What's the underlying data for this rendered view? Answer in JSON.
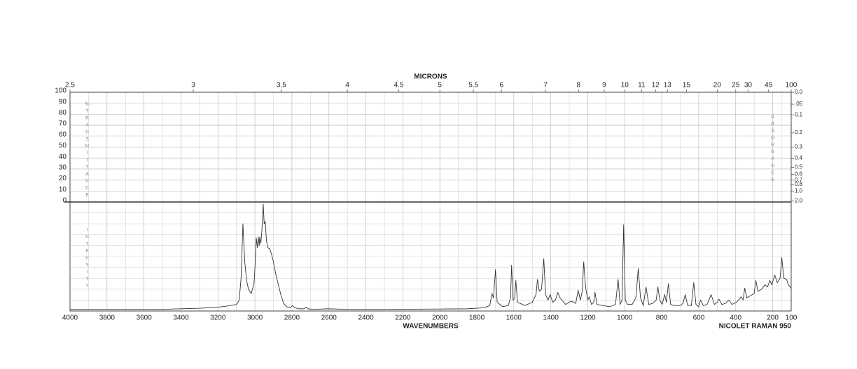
{
  "chart_data": {
    "type": "line",
    "x_label": "WAVENUMBERS",
    "x2_label": "MICRONS",
    "y_label": "%TRANSMITTANCE",
    "y2_label": "ABSORBANCE",
    "intensity_label": "INTENSITY",
    "instrument": "NICOLET RAMAN 950",
    "xlim": [
      4000,
      100
    ],
    "xticks": [
      4000,
      3800,
      3600,
      3400,
      3200,
      3000,
      2800,
      2600,
      2400,
      2200,
      2000,
      1800,
      1600,
      1400,
      1200,
      1000,
      800,
      600,
      400,
      200,
      100
    ],
    "x2ticks": [
      2.5,
      3,
      3.5,
      4,
      4.5,
      5,
      5.5,
      6,
      7,
      8,
      9,
      10,
      11,
      12,
      13,
      15,
      20,
      25,
      30,
      45,
      100
    ],
    "ylim": [
      0,
      100
    ],
    "yticks": [
      0,
      10,
      20,
      30,
      40,
      50,
      60,
      70,
      80,
      90,
      100
    ],
    "y2ticks": [
      {
        "value": 0,
        "label": "0.0"
      },
      {
        "value": 0.05,
        "label": ".05"
      },
      0.1,
      0.2,
      0.3,
      0.4,
      0.5,
      0.6,
      0.7,
      0.8,
      {
        "value": 1,
        "label": "1.0"
      },
      {
        "value": 2,
        "label": "2.0"
      }
    ],
    "intensity_lim": [
      0,
      100
    ],
    "grid": true,
    "color": "#333333",
    "x": [
      4000,
      3500,
      3300,
      3200,
      3150,
      3100,
      3085,
      3075,
      3065,
      3055,
      3045,
      3035,
      3020,
      3005,
      2998,
      2993,
      2987,
      2982,
      2977,
      2974,
      2968,
      2962,
      2955,
      2950,
      2944,
      2938,
      2930,
      2920,
      2910,
      2900,
      2885,
      2870,
      2860,
      2845,
      2830,
      2810,
      2796,
      2785,
      2760,
      2735,
      2724,
      2712,
      2690,
      2600,
      2500,
      2300,
      2000,
      1850,
      1760,
      1730,
      1718,
      1710,
      1699,
      1690,
      1660,
      1630,
      1618,
      1612,
      1604,
      1595,
      1589,
      1580,
      1540,
      1500,
      1480,
      1472,
      1462,
      1450,
      1438,
      1428,
      1415,
      1403,
      1390,
      1375,
      1362,
      1350,
      1320,
      1290,
      1265,
      1252,
      1240,
      1230,
      1222,
      1212,
      1200,
      1192,
      1180,
      1168,
      1161,
      1150,
      1120,
      1080,
      1050,
      1036,
      1025,
      1015,
      1006,
      997,
      985,
      960,
      940,
      927,
      915,
      900,
      885,
      870,
      850,
      830,
      821,
      810,
      798,
      784,
      775,
      764,
      752,
      730,
      700,
      685,
      673,
      660,
      640,
      627,
      615,
      600,
      590,
      575,
      555,
      533,
      515,
      500,
      491,
      475,
      455,
      438,
      420,
      395,
      370,
      360,
      351,
      340,
      320,
      300,
      291,
      280,
      260,
      241,
      228,
      215,
      205,
      189,
      175,
      160,
      151,
      140,
      125,
      115,
      100
    ],
    "values": [
      1.5,
      1.5,
      2.5,
      3.5,
      4.5,
      6,
      10,
      30,
      80,
      45,
      28,
      20,
      16,
      25,
      45,
      67,
      58,
      68,
      60,
      68,
      62,
      75,
      98,
      80,
      82,
      65,
      58,
      57,
      52,
      45,
      32,
      22,
      15,
      7,
      4,
      3,
      5,
      3,
      2,
      2,
      3.5,
      2,
      1.5,
      2,
      1.5,
      1.5,
      1.8,
      2,
      3,
      5,
      16,
      12,
      38,
      8,
      4,
      5,
      12,
      42,
      10,
      12,
      28,
      8,
      5,
      8,
      15,
      29,
      18,
      20,
      48,
      15,
      10,
      15,
      8,
      10,
      17,
      12,
      6,
      9,
      7,
      19,
      10,
      18,
      45,
      22,
      10,
      13,
      6,
      8,
      17,
      6,
      5,
      4,
      6,
      29,
      6,
      10,
      79,
      10,
      6,
      6,
      12,
      39,
      12,
      5,
      22,
      6,
      7,
      10,
      22,
      10,
      6,
      15,
      8,
      25,
      6,
      5,
      5,
      7,
      15,
      5,
      5,
      26,
      6,
      4,
      10,
      5,
      6,
      15,
      6,
      8,
      11,
      6,
      7,
      10,
      6,
      8,
      13,
      10,
      21,
      12,
      14,
      16,
      28,
      18,
      20,
      24,
      22,
      28,
      24,
      33,
      26,
      30,
      49,
      30,
      29,
      24,
      21
    ]
  }
}
